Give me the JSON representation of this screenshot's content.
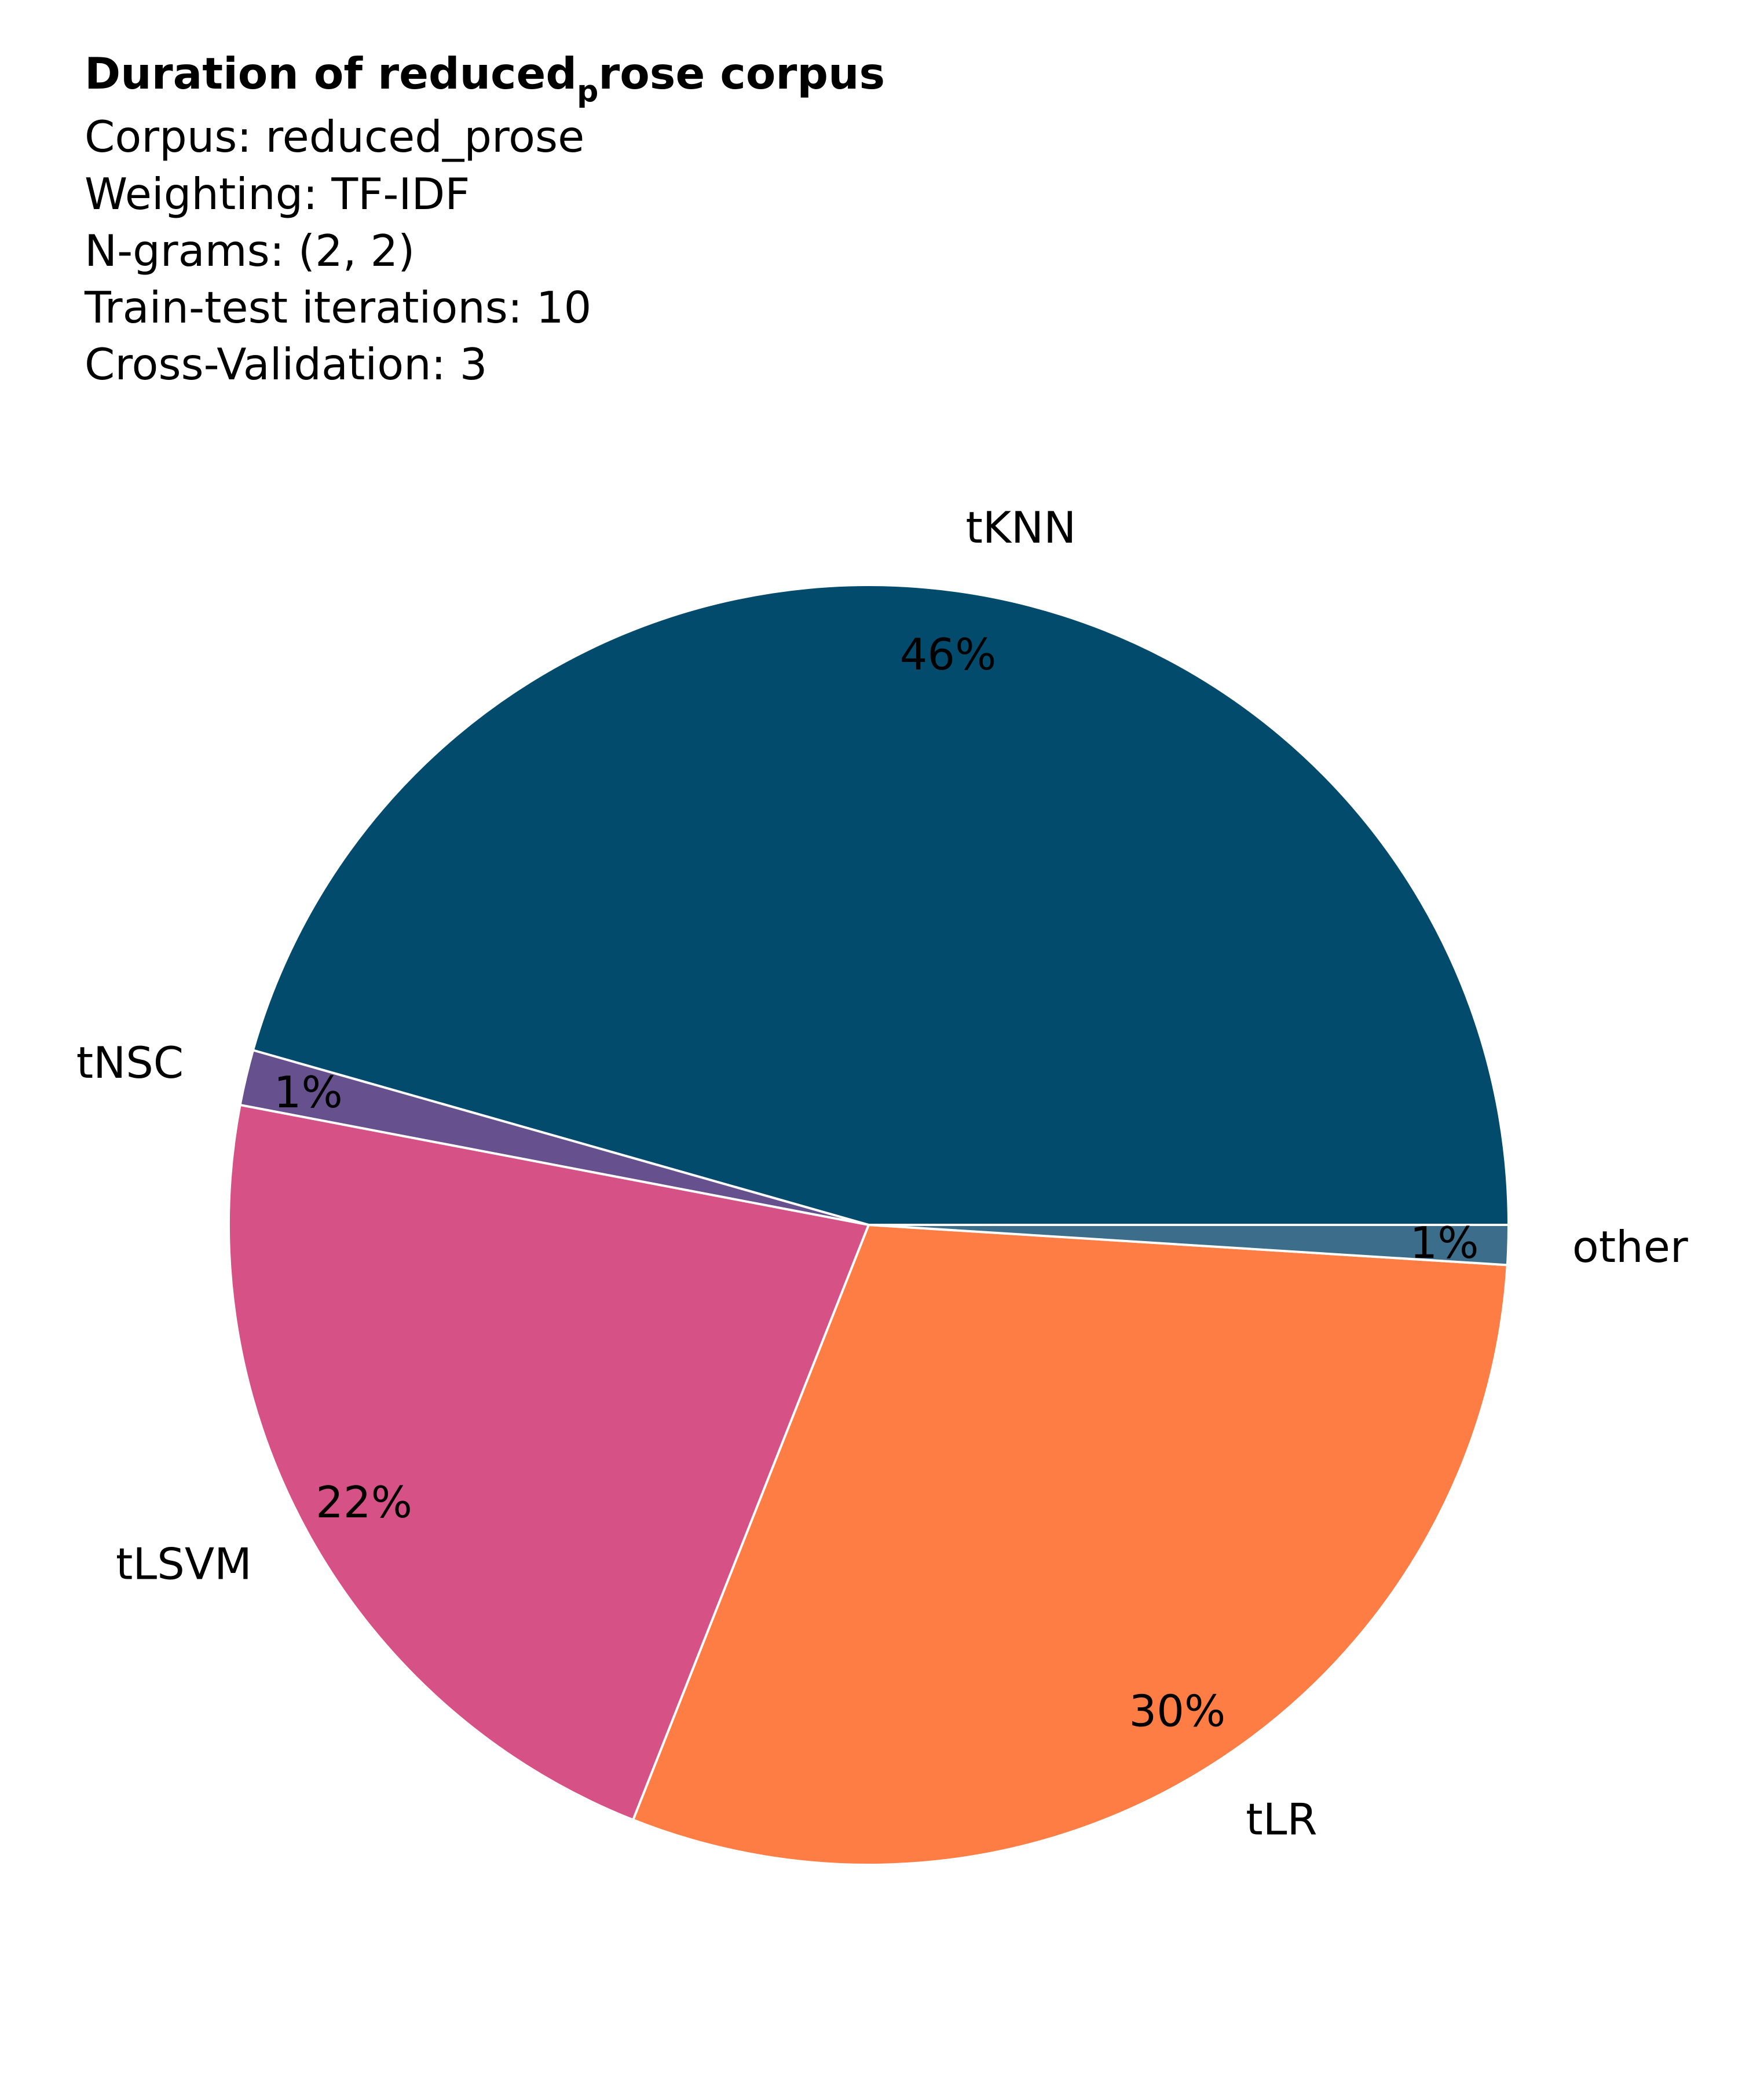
{
  "chart_data": {
    "type": "pie",
    "title": "Duration of reduced",
    "title_subscript": "p",
    "title_tail": "rose corpus",
    "subtitle_lines": [
      "Corpus: reduced_prose",
      "Weighting: TF-IDF",
      "N-grams: (2, 2)",
      "Train-test iterations: 10",
      "Cross-Validation: 3"
    ],
    "direction": "counterclockwise",
    "start_angle_deg": 0,
    "slices": [
      {
        "label": "tKNN",
        "value": 45.6,
        "pct_label": "46%",
        "color": "#024b6c"
      },
      {
        "label": "tNSC",
        "value": 1.4,
        "pct_label": "1%",
        "color": "#66518e"
      },
      {
        "label": "tLSVM",
        "value": 22.0,
        "pct_label": "22%",
        "color": "#d55186"
      },
      {
        "label": "tLR",
        "value": 30.0,
        "pct_label": "30%",
        "color": "#fe7d45"
      },
      {
        "label": "other",
        "value": 1.0,
        "pct_label": "1%",
        "color": "#3c6e8c"
      }
    ]
  }
}
